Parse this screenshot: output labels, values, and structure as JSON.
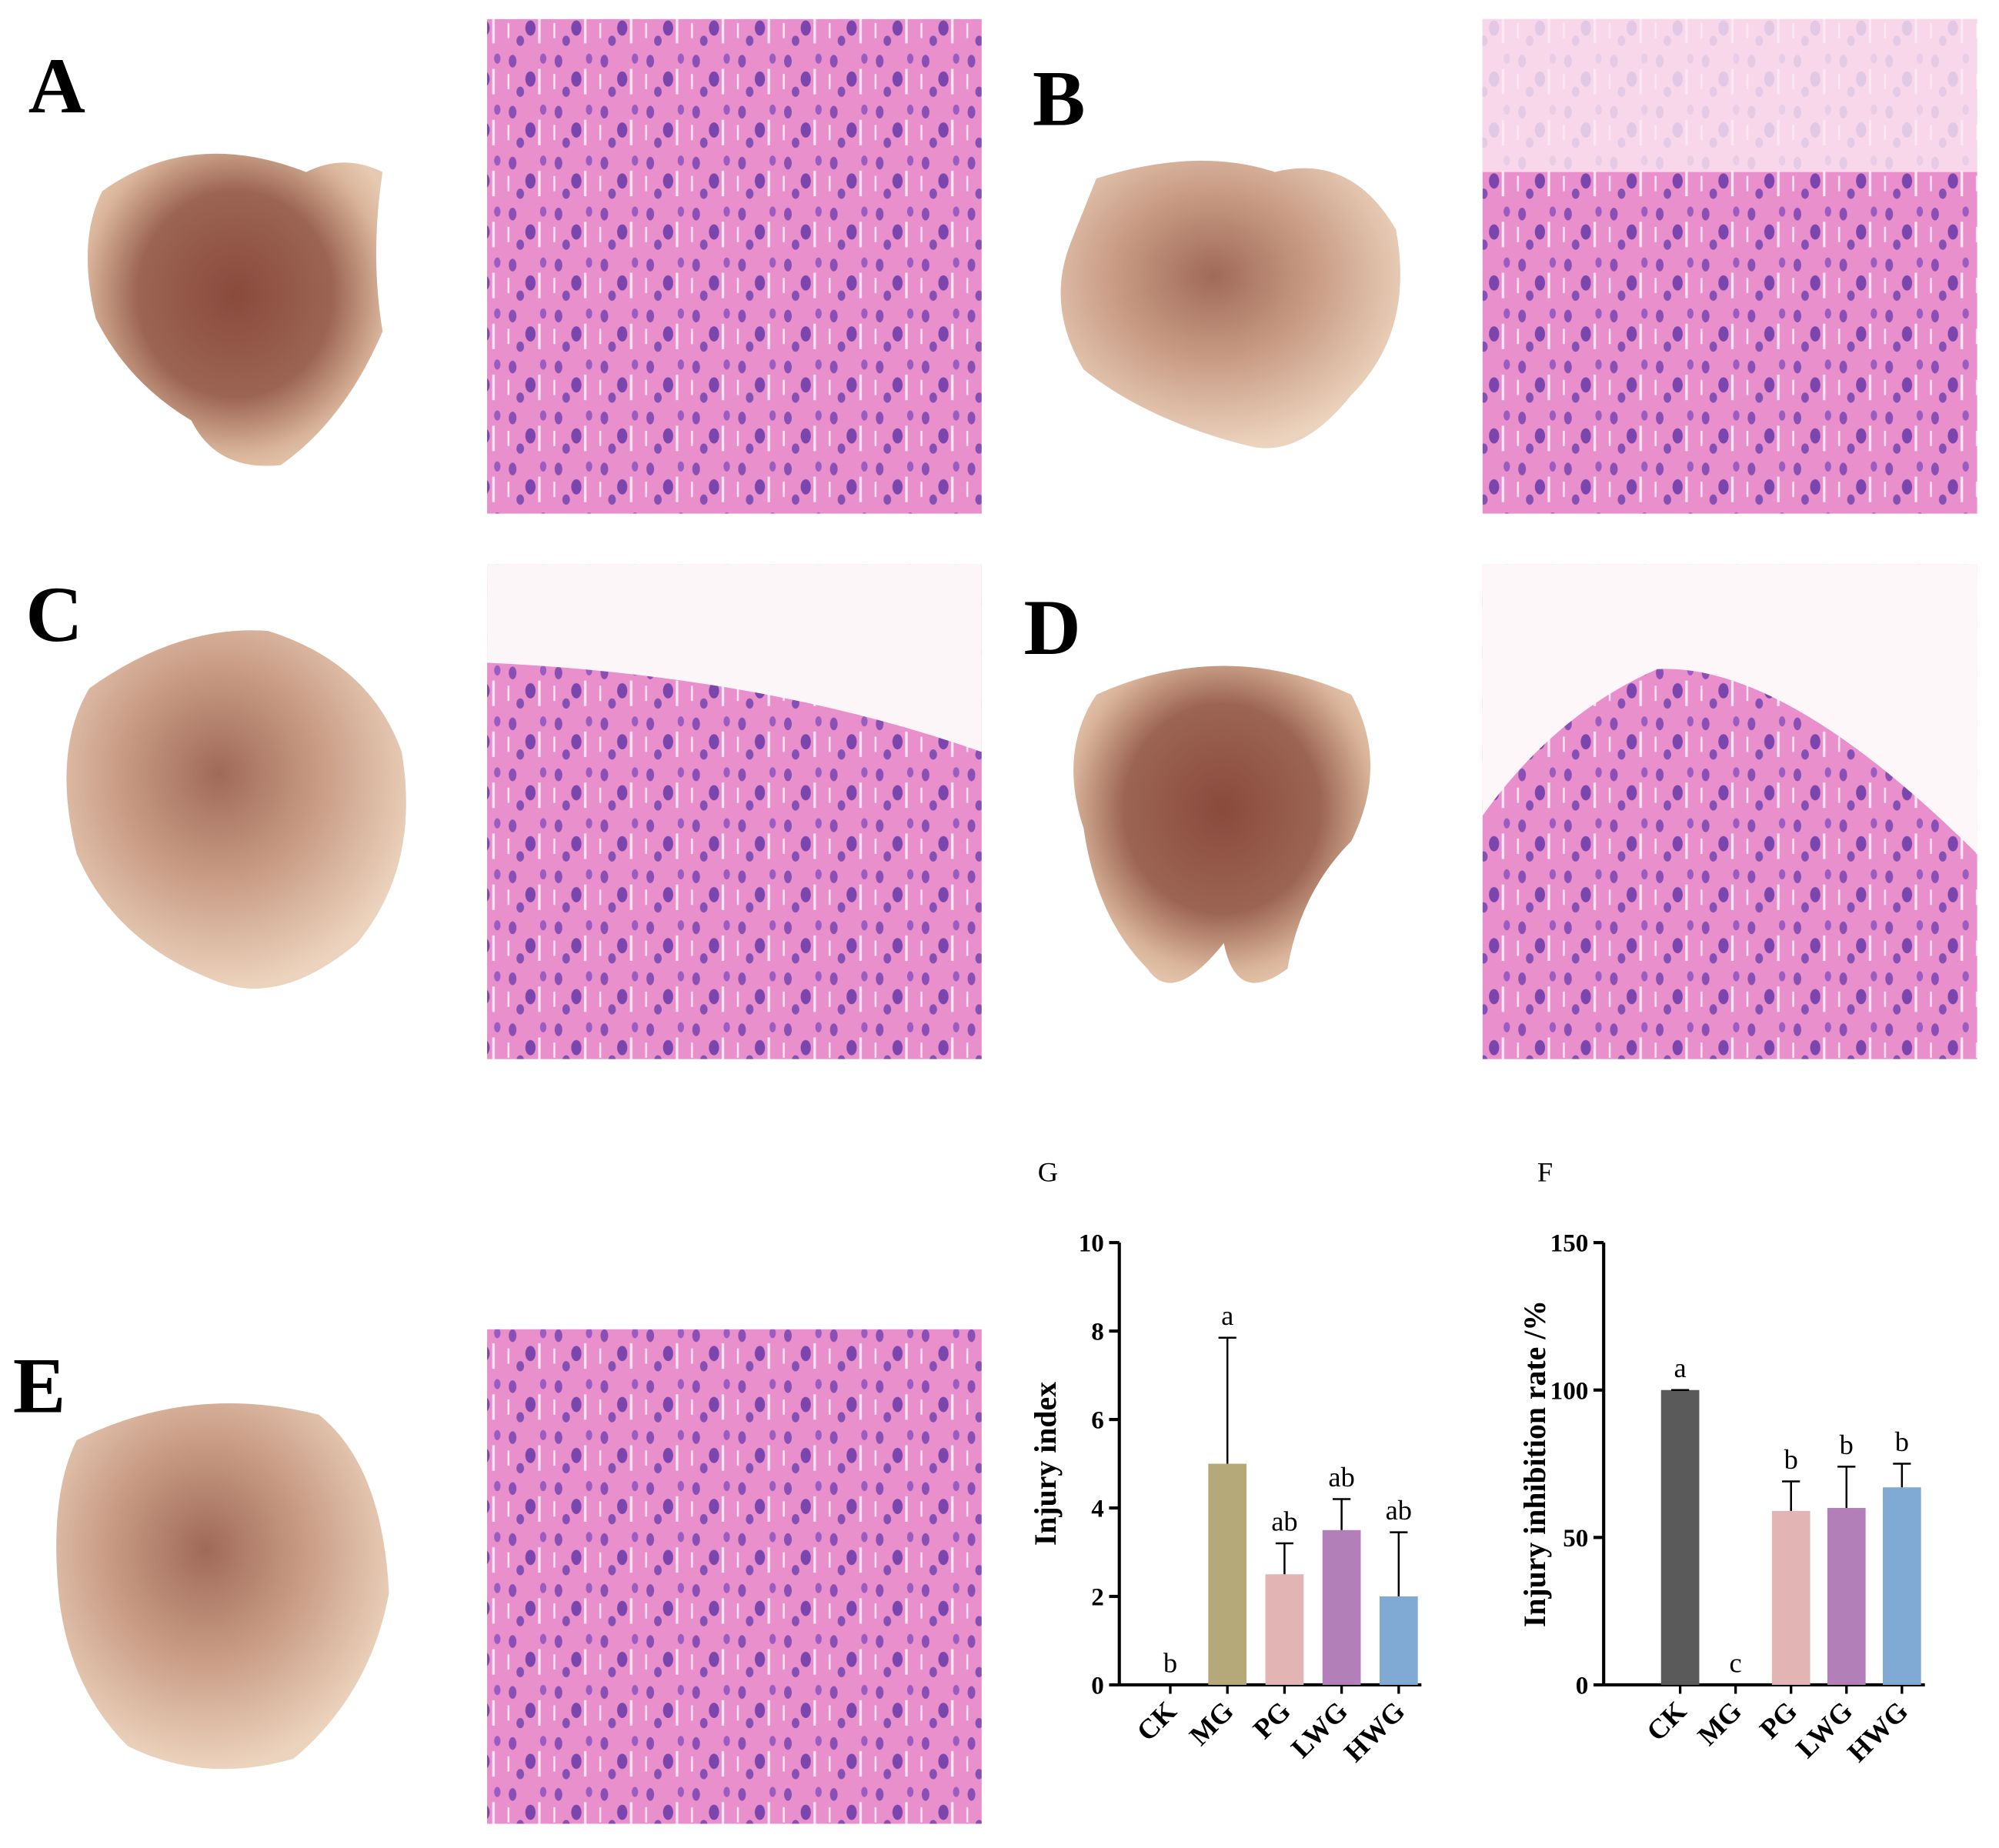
{
  "panels": [
    "A",
    "B",
    "C",
    "D",
    "E"
  ],
  "chart_data": [
    {
      "type": "bar",
      "title": "G",
      "y_label": "Injury index",
      "categories": [
        "CK",
        "MG",
        "PG",
        "LWG",
        "HWG"
      ],
      "values": [
        0,
        5,
        2.5,
        3.5,
        2
      ],
      "errors": [
        0,
        2.85,
        0.7,
        0.7,
        1.45
      ],
      "letters": [
        "b",
        "a",
        "ab",
        "ab",
        "ab"
      ],
      "colors": [
        "#5a5a5a",
        "#b5a97a",
        "#e3b4b4",
        "#b27fb9",
        "#80aad4"
      ],
      "ylim": [
        0,
        10
      ],
      "yticks": [
        0,
        2,
        4,
        6,
        8,
        10
      ]
    },
    {
      "type": "bar",
      "title": "F",
      "y_label": "Injury inhibition rate /%",
      "categories": [
        "CK",
        "MG",
        "PG",
        "LWG",
        "HWG"
      ],
      "values": [
        100,
        0,
        59,
        60,
        67
      ],
      "errors": [
        0,
        0,
        10,
        14,
        8
      ],
      "letters": [
        "a",
        "c",
        "b",
        "b",
        "b"
      ],
      "colors": [
        "#5a5a5a",
        "#b5a97a",
        "#e3b4b4",
        "#b27fb9",
        "#80aad4"
      ],
      "ylim": [
        0,
        150
      ],
      "yticks": [
        0,
        50,
        100,
        150
      ]
    }
  ]
}
